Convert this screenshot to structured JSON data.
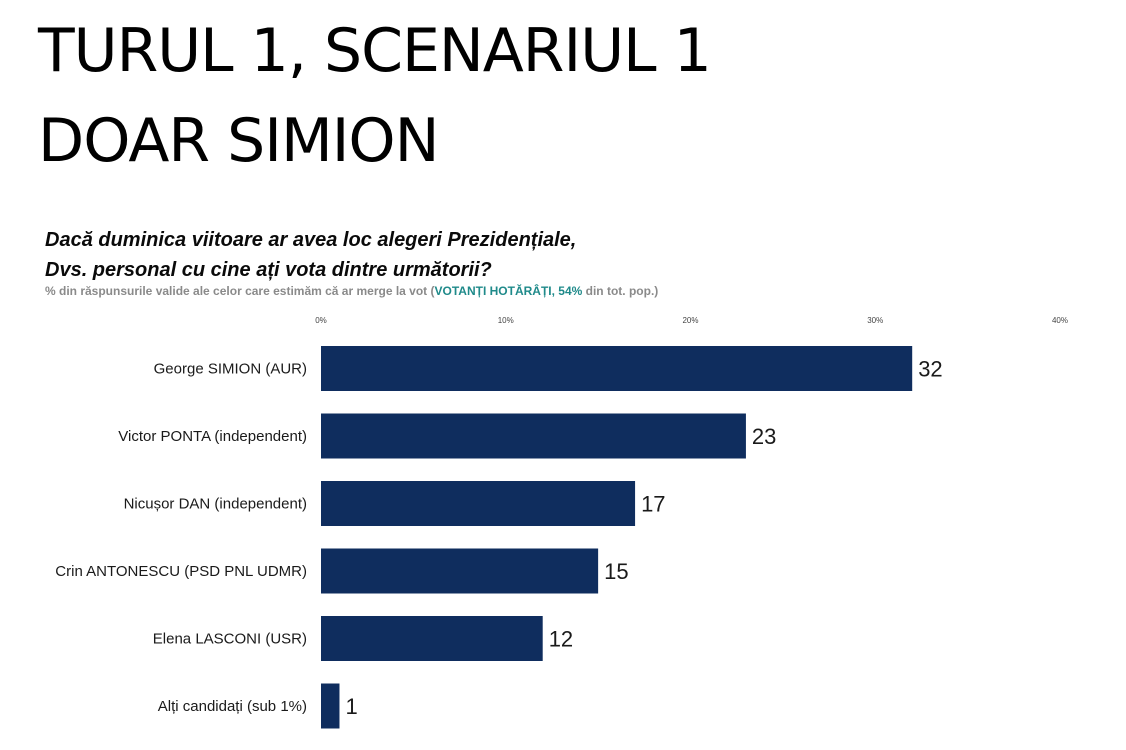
{
  "slide": {
    "title_line1": "TURUL 1, SCENARIUL 1",
    "title_line2": "DOAR SIMION"
  },
  "question": {
    "line1": "Dacă duminica viitoare ar avea loc alegeri Prezidențiale,",
    "line2": "Dvs. personal cu cine ați vota dintre următorii?"
  },
  "subtitle": {
    "prefix": "% din răspunsurile valide ale celor care estimăm că ar merge la vot (",
    "highlight": "VOTANȚI HOTĂRÂȚI, 54%",
    "suffix": " din tot. pop.)"
  },
  "colors": {
    "bar": "#0f2d5e",
    "highlight": "#1f8a8a"
  },
  "chart_data": {
    "type": "bar",
    "orientation": "horizontal",
    "categories": [
      "George SIMION (AUR)",
      "Victor PONTA (independent)",
      "Nicușor DAN (independent)",
      "Crin ANTONESCU (PSD PNL UDMR)",
      "Elena LASCONI (USR)",
      "Alți candidați (sub 1%)"
    ],
    "values": [
      32,
      23,
      17,
      15,
      12,
      1
    ],
    "xlim": [
      0,
      40
    ],
    "ticks": [
      0,
      10,
      20,
      30,
      40
    ],
    "tick_labels": [
      "0%",
      "10%",
      "20%",
      "30%",
      "40%"
    ],
    "tick_position": "top",
    "grid": false,
    "legend": "none"
  }
}
